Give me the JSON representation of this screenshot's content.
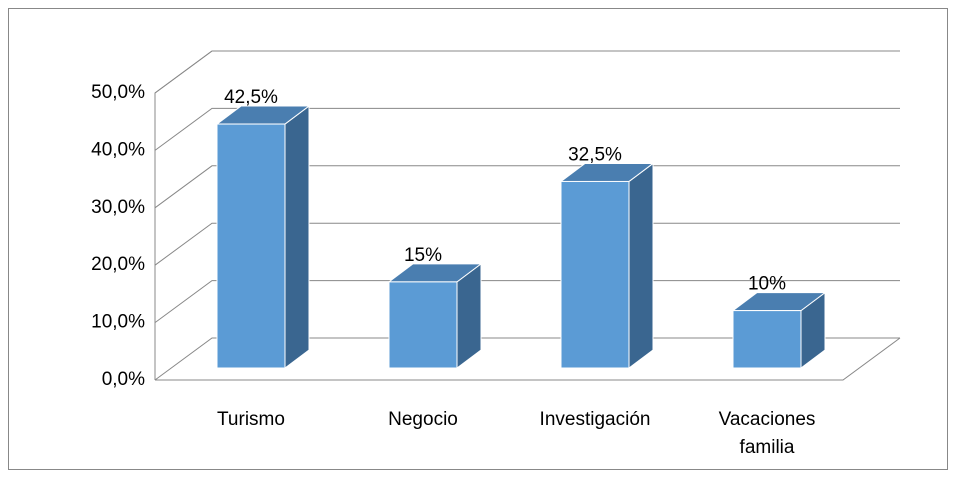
{
  "chart_data": {
    "type": "bar3d",
    "categories": [
      "Turismo",
      "Negocio",
      "Investigación",
      "Vacaciones familia"
    ],
    "values": [
      42.5,
      15,
      32.5,
      10
    ],
    "value_labels": [
      "42,5%",
      "15%",
      "32,5%",
      "10%"
    ],
    "color": "#5b9bd5",
    "ylim": [
      0,
      50
    ],
    "yticks": [
      {
        "value": 0,
        "label": "0,0%"
      },
      {
        "value": 10,
        "label": "10,0%"
      },
      {
        "value": 20,
        "label": "20,0%"
      },
      {
        "value": 30,
        "label": "30,0%"
      },
      {
        "value": 40,
        "label": "40,0%"
      },
      {
        "value": 50,
        "label": "50,0%"
      }
    ],
    "grid": true
  }
}
